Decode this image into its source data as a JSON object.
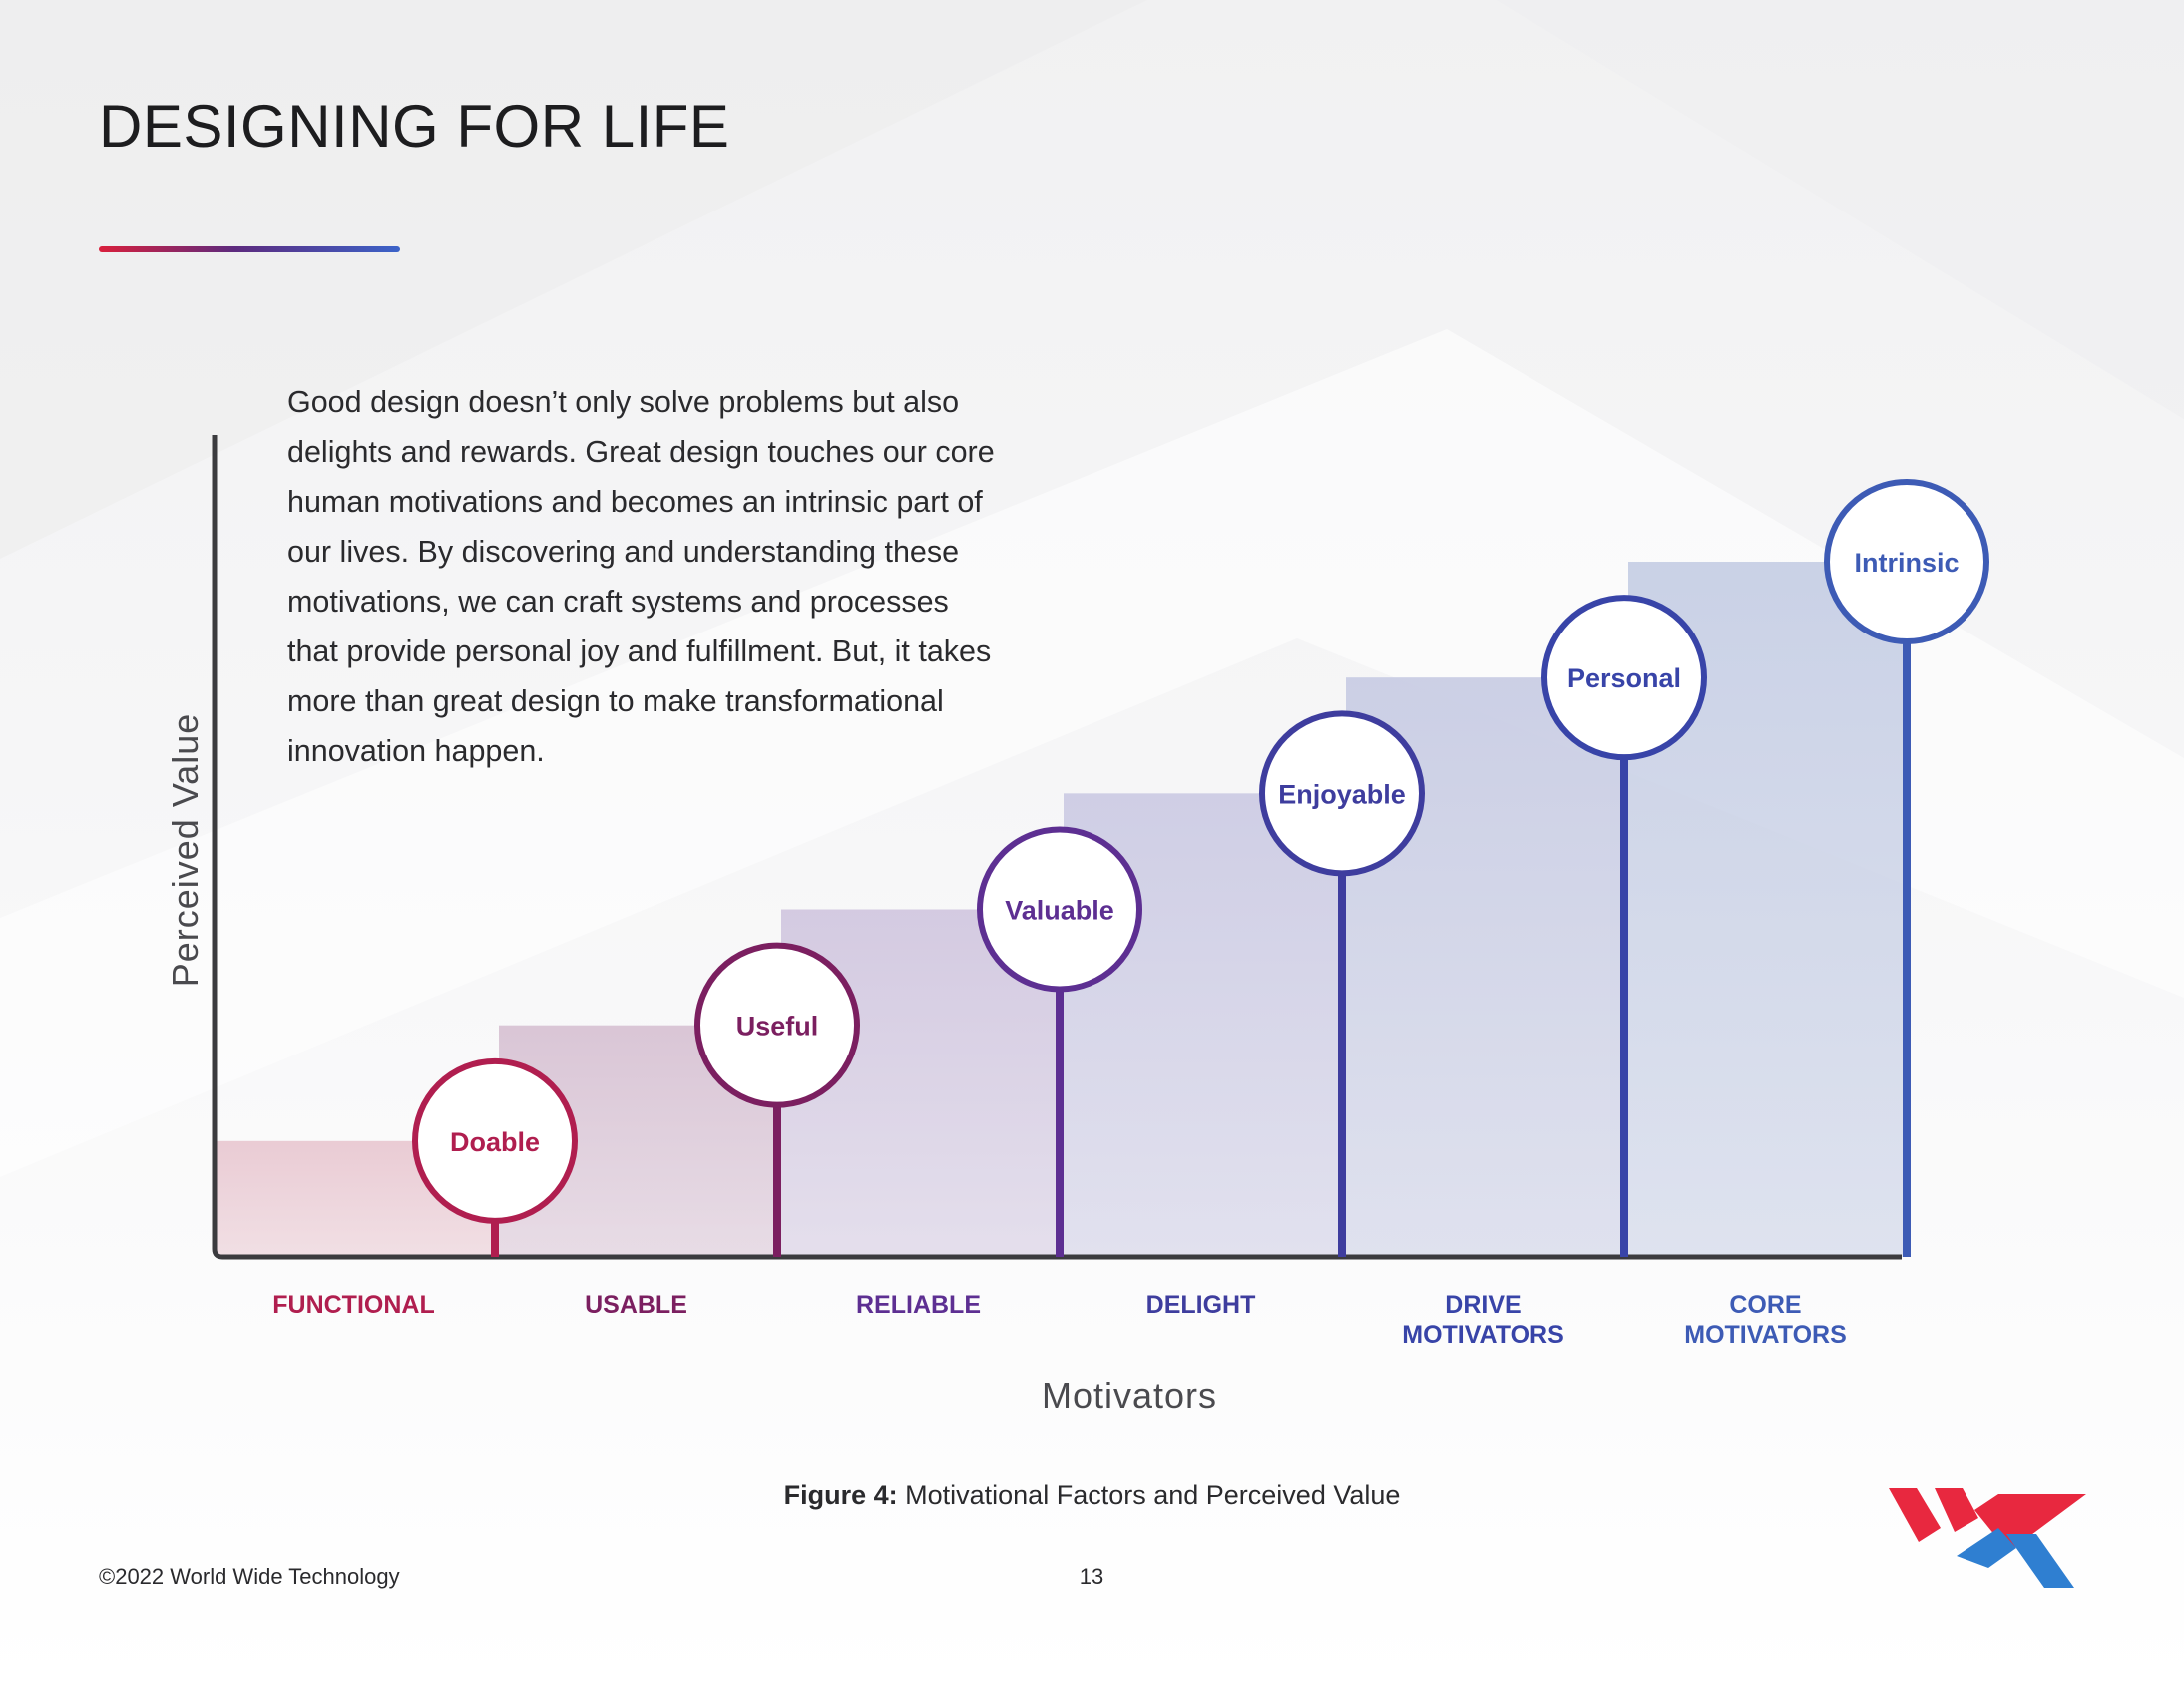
{
  "page_title": "DESIGNING FOR LIFE",
  "intro_text": "Good design doesn’t only solve problems but also delights and rewards. Great design touches our core human motivations and becomes an intrinsic part of our lives. By discovering and understanding these motivations, we can craft systems and processes that provide personal joy and fulfillment. But, it takes more than great design to make transformational innovation happen.",
  "chart_data": {
    "type": "bar",
    "title": "",
    "xlabel": "Motivators",
    "ylabel": "Perceived Value",
    "categories": [
      [
        "FUNCTIONAL"
      ],
      [
        "USABLE"
      ],
      [
        "RELIABLE"
      ],
      [
        "DELIGHT"
      ],
      [
        "DRIVE",
        "MOTIVATORS"
      ],
      [
        "CORE",
        "MOTIVATORS"
      ]
    ],
    "values": [
      1,
      2,
      3,
      4,
      5,
      6
    ],
    "point_labels": [
      "Doable",
      "Useful",
      "Valuable",
      "Enjoyable",
      "Personal",
      "Intrinsic"
    ],
    "colors": [
      "#b01e4f",
      "#7b1f60",
      "#5d2f92",
      "#3e3d9e",
      "#3844a8",
      "#3d5bb5"
    ],
    "ylim": [
      0,
      7.3
    ],
    "grid": false,
    "legend": "none"
  },
  "caption": {
    "label": "Figure 4:",
    "text": " Motivational Factors and Perceived Value"
  },
  "footer": {
    "copyright": "©2022 World Wide Technology",
    "page_number": "13"
  },
  "logo": {
    "icon": "wwt-logo-icon",
    "colors": [
      "#e8283f",
      "#2f7fd1"
    ]
  }
}
